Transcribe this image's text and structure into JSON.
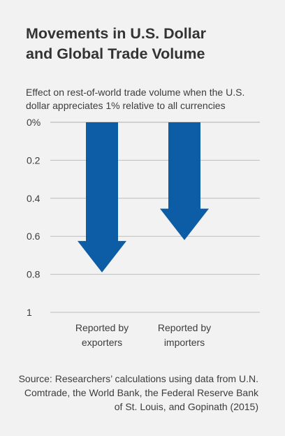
{
  "title": "Movements in U.S. Dollar\nand Global Trade Volume",
  "subtitle": "Effect on rest-of-world trade volume when the U.S. dollar appreciates 1% relative to all currencies",
  "source": "Source: Researchers’ calculations using data from U.N. Comtrade, the World Bank, the Federal Reserve Bank of St. Louis, and Gopinath (2015)",
  "colors": {
    "arrow": "#0d5da6",
    "grid": "#bdbdbd",
    "background": "#f2f2f2"
  },
  "chart_data": {
    "type": "bar",
    "orientation": "downward-arrows",
    "categories": [
      [
        "Reported by",
        "exporters"
      ],
      [
        "Reported by",
        "importers"
      ]
    ],
    "values": [
      0.79,
      0.62
    ],
    "ylim": [
      0,
      1
    ],
    "yticks": [
      0,
      0.2,
      0.4,
      0.6,
      0.8,
      1
    ],
    "ytick_labels": [
      "0%",
      "0.2",
      "0.4",
      "0.6",
      "0.8",
      "1"
    ],
    "grid": true,
    "title": "Movements in U.S. Dollar and Global Trade Volume",
    "ylabel": "Effect on rest-of-world trade volume when the U.S. dollar appreciates 1% relative to all currencies"
  }
}
